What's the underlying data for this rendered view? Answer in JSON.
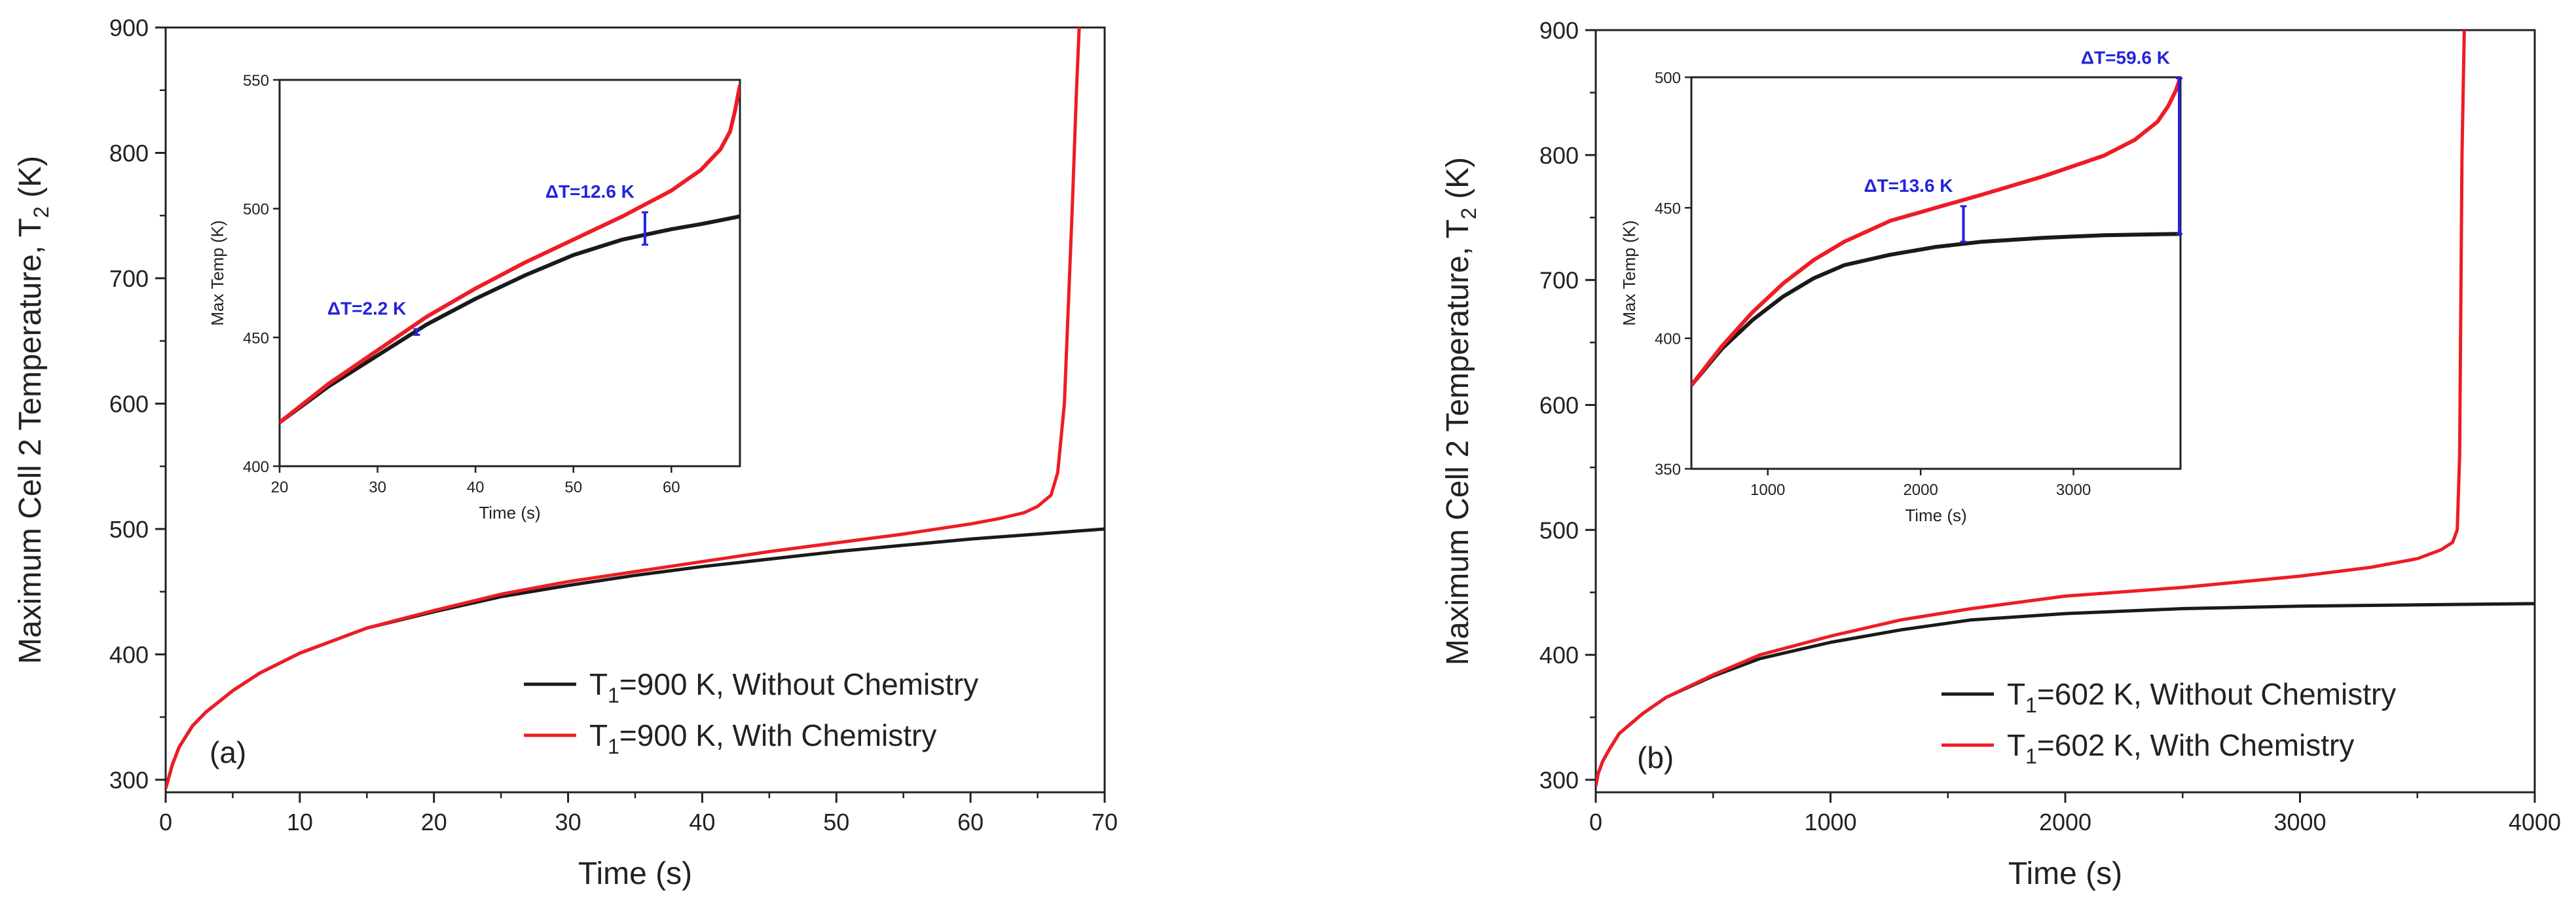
{
  "colors": {
    "without": "#1a1a1a",
    "with": "#ee1c25",
    "annotation": "#2323e0"
  },
  "chart_data": [
    {
      "type": "line",
      "panel_label": "(a)",
      "xlabel": "Time (s)",
      "ylabel": "Maximum Cell 2 Temperature, T",
      "ylabel_sub": "2",
      "ylabel_tail": " (K)",
      "xlim": [
        0,
        70
      ],
      "ylim": [
        290,
        900
      ],
      "xticks": [
        0,
        10,
        20,
        30,
        40,
        50,
        60,
        70
      ],
      "yticks": [
        300,
        400,
        500,
        600,
        700,
        800,
        900
      ],
      "legend": [
        {
          "pre": "T",
          "sub": "1",
          "post": "=900 K, Without Chemistry",
          "series": 0
        },
        {
          "pre": "T",
          "sub": "1",
          "post": "=900 K, With Chemistry",
          "series": 1
        }
      ],
      "series": [
        {
          "name": "T1=900 K, Without Chemistry",
          "x": [
            0,
            0.5,
            1,
            2,
            3,
            5,
            7,
            10,
            15,
            20,
            25,
            30,
            35,
            40,
            45,
            50,
            55,
            60,
            65,
            70
          ],
          "y": [
            293,
            312,
            326,
            343,
            354,
            371,
            385,
            401,
            421,
            434,
            446,
            455,
            463,
            470,
            476,
            482,
            487,
            492,
            496,
            500
          ]
        },
        {
          "name": "T1=900 K, With Chemistry",
          "x": [
            0,
            0.5,
            1,
            2,
            3,
            5,
            7,
            10,
            15,
            20,
            25,
            30,
            35,
            40,
            45,
            50,
            55,
            60,
            62,
            64,
            65,
            66,
            66.5,
            67,
            67.3,
            67.6,
            67.9,
            68.1
          ],
          "y": [
            293,
            312,
            326,
            343,
            354,
            371,
            385,
            401,
            421,
            435,
            448,
            458,
            466,
            474,
            482,
            489,
            496,
            504,
            508,
            513,
            518,
            527,
            545,
            600,
            680,
            760,
            850,
            900
          ]
        }
      ],
      "inset": {
        "xlabel": "Time (s)",
        "ylabel": "Max Temp (K)",
        "xlim": [
          20,
          67
        ],
        "ylim": [
          400,
          550
        ],
        "xticks": [
          20,
          30,
          40,
          50,
          60
        ],
        "yticks": [
          400,
          450,
          500,
          550
        ],
        "series": [
          {
            "x": [
              20,
              25,
              30,
              35,
              40,
              45,
              50,
              55,
              60,
              63,
              65,
              67
            ],
            "y": [
              417,
              431,
              443,
              455,
              465,
              474,
              482,
              488,
              492,
              494,
              495.5,
              497
            ]
          },
          {
            "x": [
              20,
              25,
              30,
              35,
              40,
              45,
              50,
              55,
              60,
              63,
              65,
              66,
              66.5,
              67
            ],
            "y": [
              417,
              432,
              445,
              458,
              469,
              479,
              488,
              497,
              507,
              515,
              523,
              530,
              538,
              548
            ]
          }
        ],
        "annotations": [
          {
            "label": "ΔT=2.2 K",
            "x": 34,
            "y1": 451,
            "y2": 453.2
          },
          {
            "label": "ΔT=12.6 K",
            "x": 57.3,
            "y1": 486,
            "y2": 498.6
          }
        ]
      }
    },
    {
      "type": "line",
      "panel_label": "(b)",
      "xlabel": "Time (s)",
      "ylabel": "Maximum Cell 2 Temperature, T",
      "ylabel_sub": "2",
      "ylabel_tail": " (K)",
      "xlim": [
        0,
        4000
      ],
      "ylim": [
        290,
        900
      ],
      "xticks": [
        0,
        1000,
        2000,
        3000,
        4000
      ],
      "yticks": [
        300,
        400,
        500,
        600,
        700,
        800,
        900
      ],
      "legend": [
        {
          "pre": "T",
          "sub": "1",
          "post": "=602 K, Without Chemistry",
          "series": 0
        },
        {
          "pre": "T",
          "sub": "1",
          "post": "=602 K, With Chemistry",
          "series": 1
        }
      ],
      "series": [
        {
          "name": "T1=602 K, Without Chemistry",
          "x": [
            0,
            10,
            30,
            60,
            100,
            200,
            300,
            500,
            700,
            1000,
            1300,
            1600,
            2000,
            2500,
            3000,
            3500,
            4000
          ],
          "y": [
            295,
            305,
            315,
            325,
            337,
            353,
            366,
            383,
            397,
            410,
            420,
            428,
            433,
            437,
            439,
            440,
            441
          ]
        },
        {
          "name": "T1=602 K, With Chemistry",
          "x": [
            0,
            10,
            30,
            60,
            100,
            200,
            300,
            500,
            700,
            1000,
            1300,
            1600,
            2000,
            2500,
            3000,
            3300,
            3500,
            3600,
            3650,
            3670,
            3680,
            3685,
            3690,
            3700
          ],
          "y": [
            295,
            305,
            315,
            325,
            337,
            353,
            366,
            384,
            400,
            415,
            428,
            437,
            447,
            454,
            463,
            470,
            477,
            484,
            490,
            500,
            560,
            680,
            800,
            900
          ]
        }
      ],
      "inset": {
        "xlabel": "Time (s)",
        "ylabel": "Max Temp (K)",
        "xlim": [
          500,
          3700
        ],
        "ylim": [
          350,
          500
        ],
        "xticks": [
          1000,
          2000,
          3000
        ],
        "yticks": [
          350,
          400,
          450,
          500
        ],
        "series": [
          {
            "x": [
              500,
              700,
              900,
              1100,
              1300,
              1500,
              1800,
              2100,
              2400,
              2800,
              3200,
              3700
            ],
            "y": [
              382,
              396,
              407,
              416,
              423,
              428,
              432,
              435,
              437,
              438.5,
              439.5,
              440
            ]
          },
          {
            "x": [
              500,
              700,
              900,
              1100,
              1300,
              1500,
              1800,
              2100,
              2400,
              2800,
              3200,
              3400,
              3550,
              3620,
              3670,
              3700
            ],
            "y": [
              382,
              397,
              410,
              421,
              430,
              437,
              445,
              450,
              455,
              462,
              470,
              476,
              483,
              489,
              495,
              500
            ]
          }
        ],
        "annotations": [
          {
            "label": "ΔT=13.6 K",
            "x": 2280,
            "y1": 437,
            "y2": 450.6
          },
          {
            "label": "ΔT=59.6 K",
            "x": 3700,
            "y1": 440,
            "y2": 499.6
          }
        ]
      }
    }
  ]
}
